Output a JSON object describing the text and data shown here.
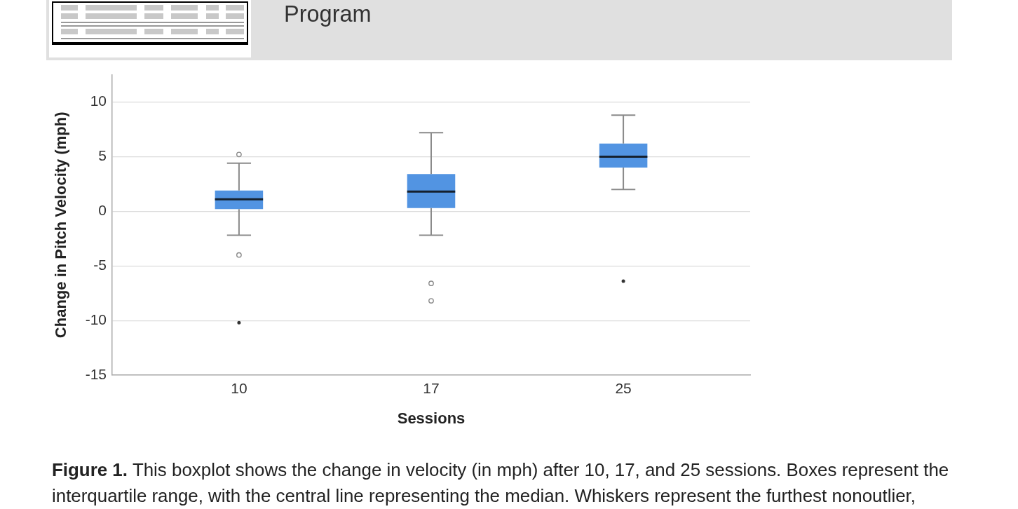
{
  "chart_data": {
    "type": "box",
    "categories": [
      "10",
      "17",
      "25"
    ],
    "boxes": [
      {
        "low": -2.2,
        "q1": 0.2,
        "median": 1.1,
        "q3": 1.9,
        "high": 4.4,
        "outliers": [
          5.2,
          -4.0,
          -10.2
        ]
      },
      {
        "low": -2.2,
        "q1": 0.3,
        "median": 1.8,
        "q3": 3.4,
        "high": 7.2,
        "outliers": [
          -6.6,
          -8.2
        ]
      },
      {
        "low": 2.0,
        "q1": 4.0,
        "median": 5.0,
        "q3": 6.2,
        "high": 8.8,
        "outliers": [
          -6.4
        ]
      }
    ],
    "color": "#5294e2",
    "xlabel": "Sessions",
    "ylabel": "Change in Pitch Velocity (mph)",
    "ylim": [
      -15,
      12.5
    ],
    "yticks": [
      -15,
      -10,
      -5,
      0,
      5,
      10
    ],
    "grid": "y",
    "annotations": [
      "Program",
      "Figure 1.",
      "This boxplot shows the change in velocity (in mph) after 10, 17, and 25 sessions. Boxes represent the",
      "interquartile range, with the central line representing the median. Whiskers represent the furthest nonoutlier,"
    ]
  }
}
